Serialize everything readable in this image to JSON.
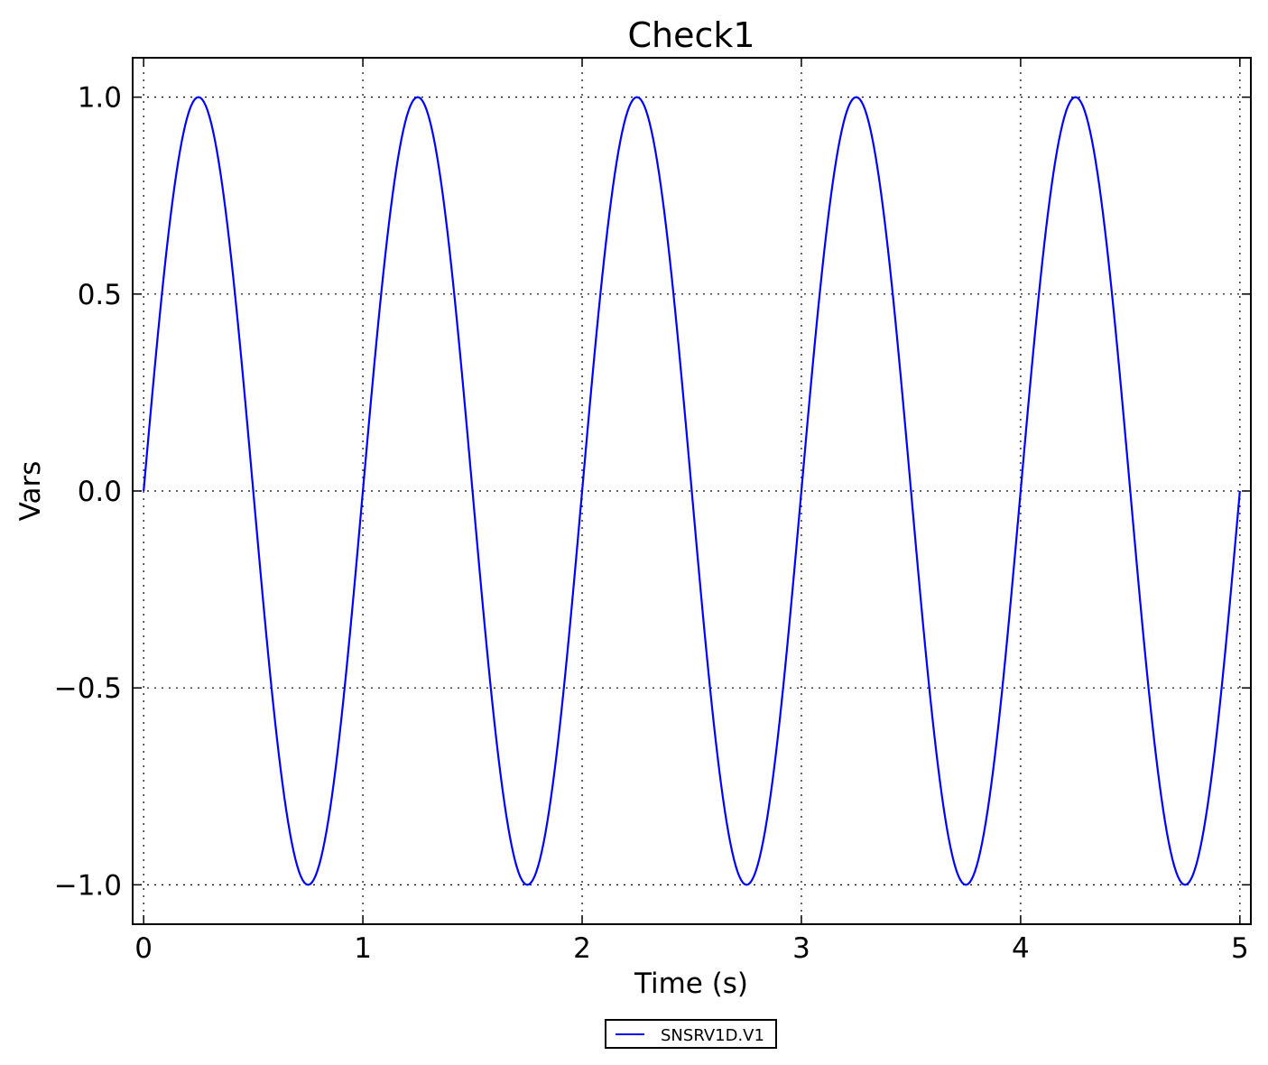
{
  "chart_data": {
    "type": "line",
    "title": "Check1",
    "xlabel": "Time (s)",
    "ylabel": "Vars",
    "xlim": [
      -0.05,
      5.05
    ],
    "ylim": [
      -1.1,
      1.1
    ],
    "xticks": [
      0,
      1,
      2,
      3,
      4,
      5
    ],
    "xtick_labels": [
      "0",
      "1",
      "2",
      "3",
      "4",
      "5"
    ],
    "yticks": [
      1.0,
      0.5,
      0.0,
      -0.5,
      -1.0
    ],
    "ytick_labels": [
      "1.0",
      "0.5",
      "0.0",
      "−0.5",
      "−1.0"
    ],
    "grid": true,
    "legend_position": "below-center",
    "series": [
      {
        "name": "SNSRV1D.V1",
        "color": "#0000ff",
        "function": "sin(2*pi*t)",
        "x_range": [
          0,
          5
        ],
        "points": [
          [
            0,
            0
          ],
          [
            0.25,
            1
          ],
          [
            0.5,
            0
          ],
          [
            0.75,
            -1
          ],
          [
            1,
            0
          ],
          [
            1.25,
            1
          ],
          [
            1.5,
            0
          ],
          [
            1.75,
            -1
          ],
          [
            2,
            0
          ],
          [
            2.25,
            1
          ],
          [
            2.5,
            0
          ],
          [
            2.75,
            -1
          ],
          [
            3,
            0
          ],
          [
            3.25,
            1
          ],
          [
            3.5,
            0
          ],
          [
            3.75,
            -1
          ],
          [
            4,
            0
          ],
          [
            4.25,
            1
          ],
          [
            4.5,
            0
          ],
          [
            4.75,
            -1
          ],
          [
            5,
            0
          ]
        ]
      }
    ]
  }
}
